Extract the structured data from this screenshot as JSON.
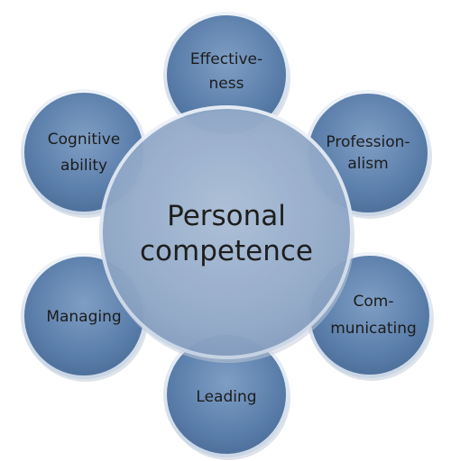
{
  "diagram": {
    "center": {
      "lines": [
        "Personal",
        "competence"
      ]
    },
    "satellites": [
      {
        "id": "effectiveness",
        "lines": [
          "Effective-",
          "ness"
        ]
      },
      {
        "id": "professionalism",
        "lines": [
          "Profession-",
          "alism"
        ]
      },
      {
        "id": "communicating",
        "lines": [
          "Com-",
          "municating"
        ]
      },
      {
        "id": "leading",
        "lines": [
          "Leading"
        ]
      },
      {
        "id": "managing",
        "lines": [
          "Managing"
        ]
      },
      {
        "id": "cognitive-ability",
        "lines": [
          "Cognitive",
          "ability"
        ]
      }
    ],
    "colors": {
      "center_fill": "#8ea6c6",
      "satellite_fill": "#5b7fab",
      "rim": "#dde6f2",
      "shadow": "#b9c3cf"
    }
  }
}
